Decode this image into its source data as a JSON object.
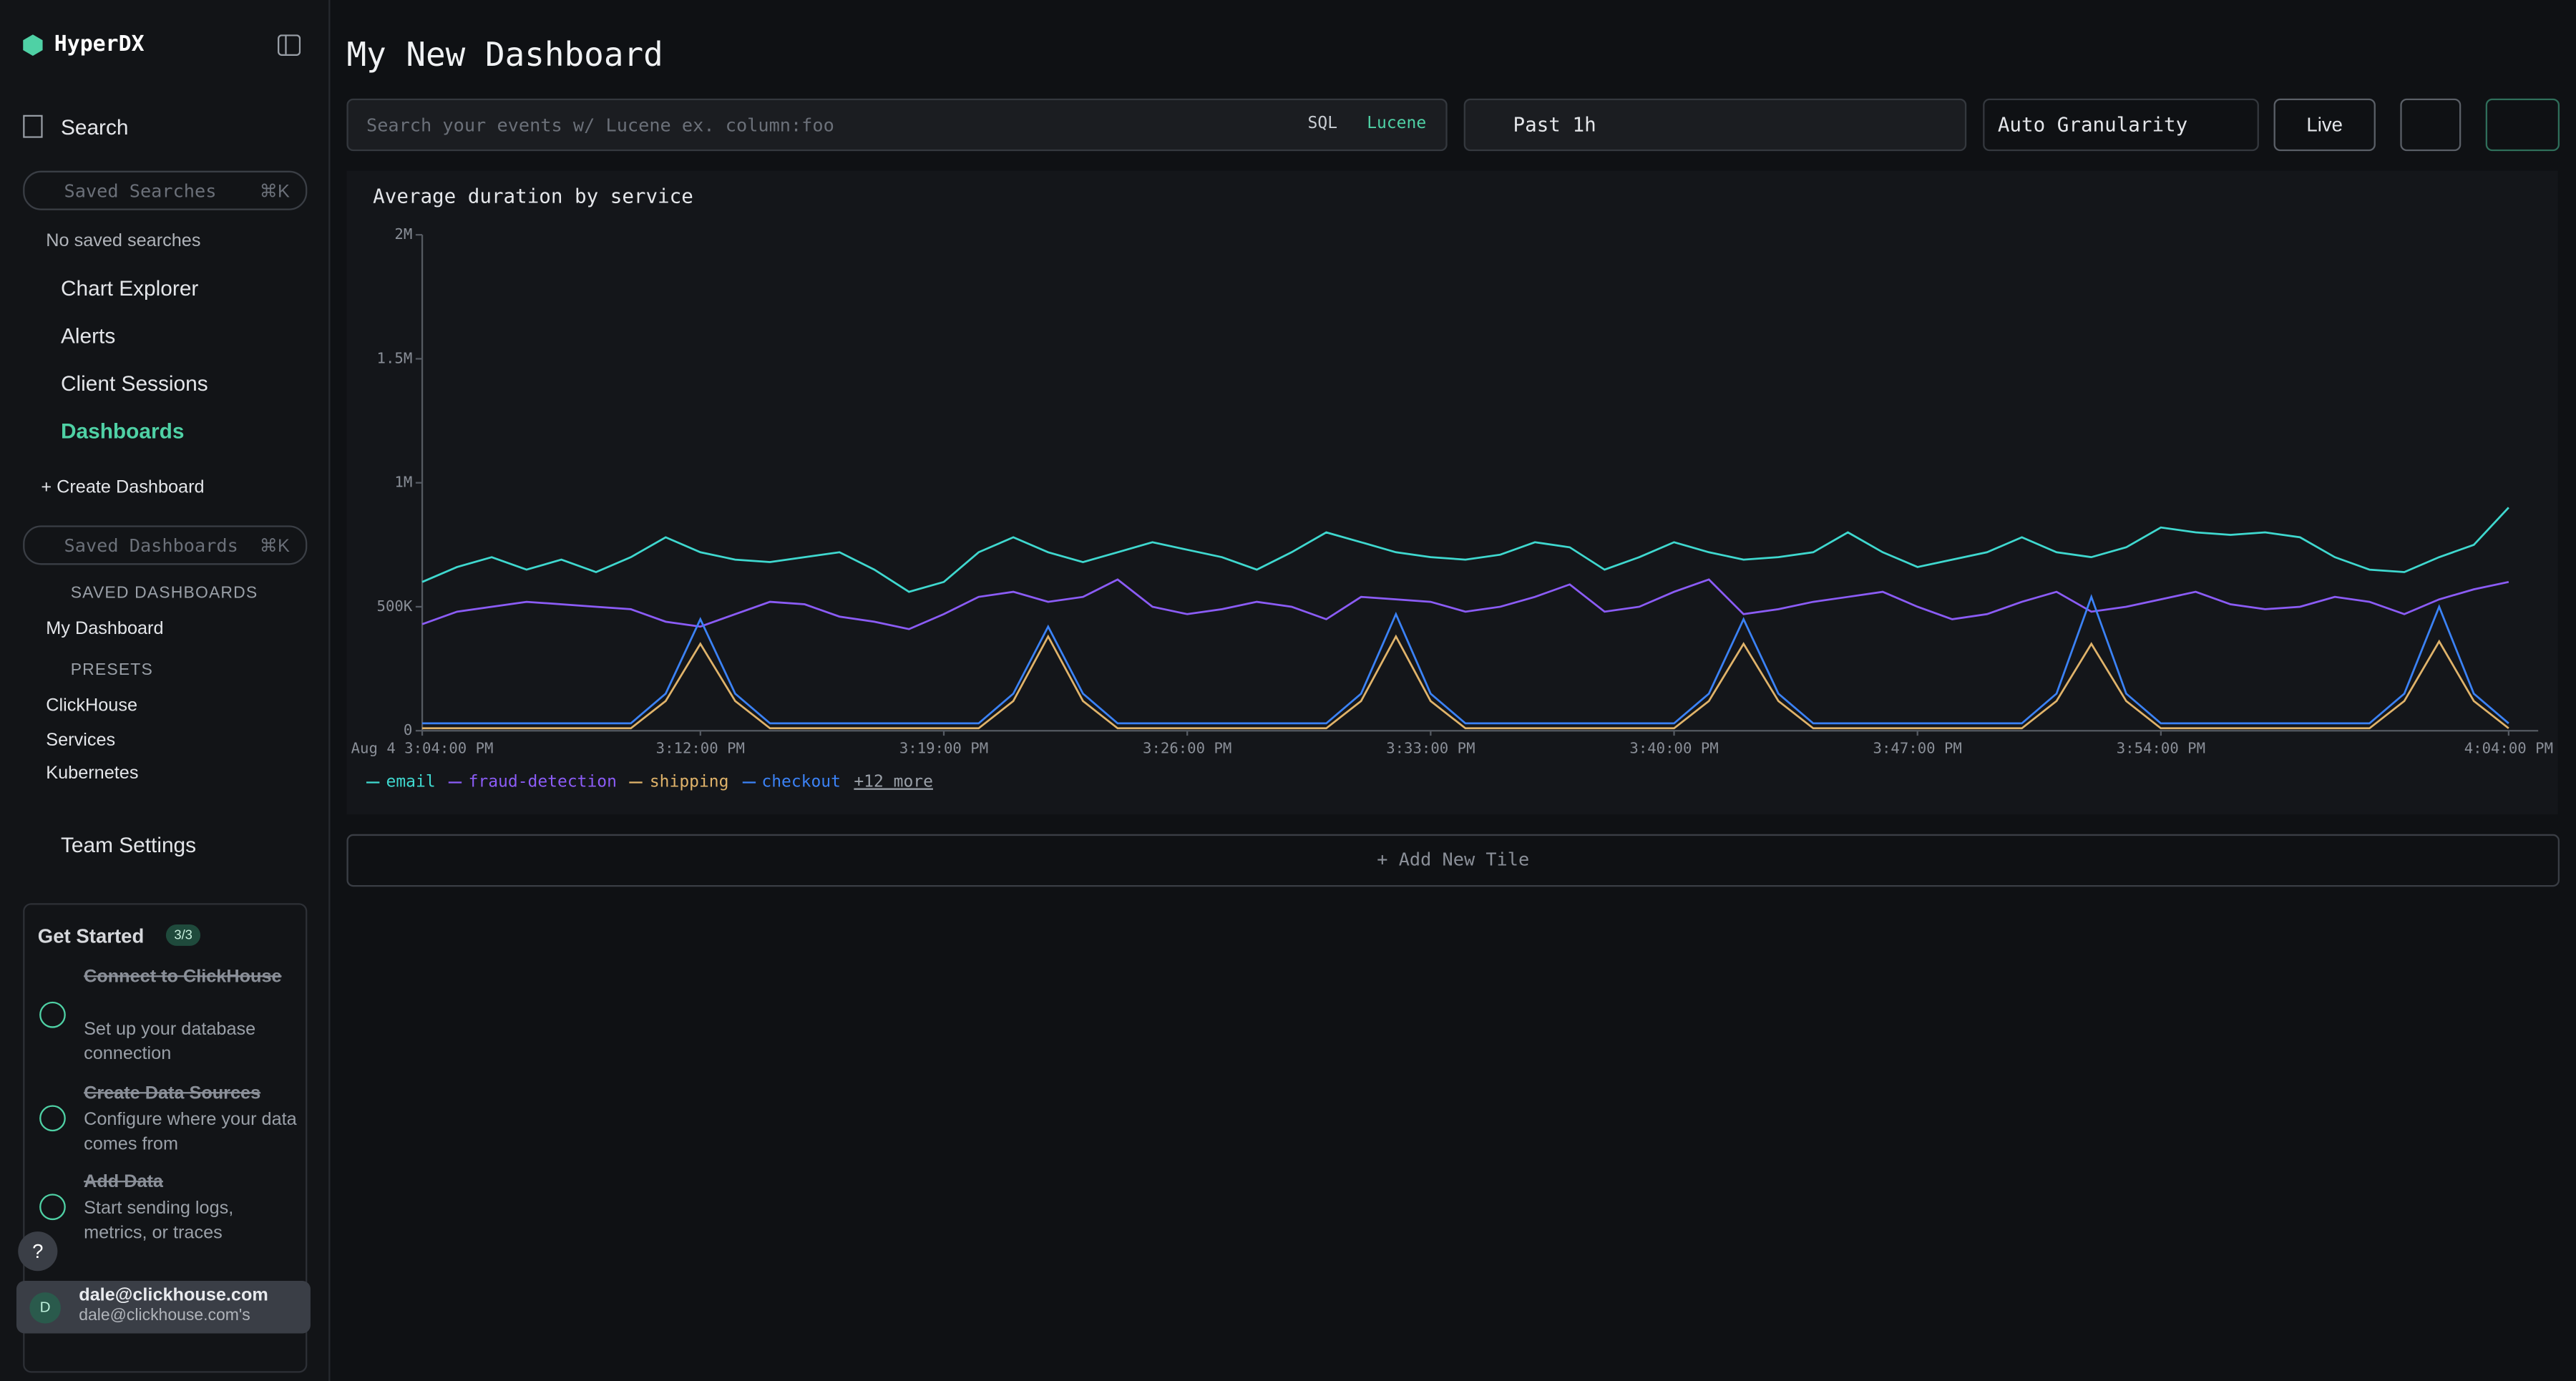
{
  "sidebar": {
    "brand": "HyperDX",
    "search": "Search",
    "saved_searches_placeholder": "Saved Searches",
    "saved_searches_shortcut": "⌘K",
    "no_saved_searches": "No saved searches",
    "chart_explorer": "Chart Explorer",
    "alerts": "Alerts",
    "client_sessions": "Client Sessions",
    "dashboards": "Dashboards",
    "create_dashboard": "+ Create Dashboard",
    "saved_dashboards_placeholder": "Saved Dashboards",
    "saved_dashboards_shortcut": "⌘K",
    "saved_dashboards_heading": "SAVED DASHBOARDS",
    "saved_dashboards": [
      "My Dashboard"
    ],
    "presets_heading": "PRESETS",
    "presets": [
      "ClickHouse",
      "Services",
      "Kubernetes"
    ],
    "team_settings": "Team Settings"
  },
  "get_started": {
    "title": "Get Started",
    "badge": "3/3",
    "steps": [
      {
        "title": "Connect to ClickHouse",
        "description": "Set up your database connection"
      },
      {
        "title": "Create Data Sources",
        "description": "Configure where your data comes from"
      },
      {
        "title": "Add Data",
        "description": "Start sending logs, metrics, or traces"
      }
    ]
  },
  "help": "?",
  "user": {
    "initial": "D",
    "email": "dale@clickhouse.com",
    "org": "dale@clickhouse.com's"
  },
  "header": {
    "title": "My New Dashboard",
    "search_placeholder": "Search your events w/ Lucene ex. column:foo",
    "sql": "SQL",
    "lucene": "Lucene",
    "time_range": "Past 1h",
    "granularity": "Auto Granularity",
    "live": "Live"
  },
  "add_tile": "+ Add New Tile",
  "chart_data": {
    "type": "line",
    "title": "Average duration by service",
    "x": [
      "3:04:00 PM",
      "3:05:00 PM",
      "3:06:00 PM",
      "3:07:00 PM",
      "3:08:00 PM",
      "3:09:00 PM",
      "3:10:00 PM",
      "3:11:00 PM",
      "3:12:00 PM",
      "3:13:00 PM",
      "3:14:00 PM",
      "3:15:00 PM",
      "3:16:00 PM",
      "3:17:00 PM",
      "3:18:00 PM",
      "3:19:00 PM",
      "3:20:00 PM",
      "3:21:00 PM",
      "3:22:00 PM",
      "3:23:00 PM",
      "3:24:00 PM",
      "3:25:00 PM",
      "3:26:00 PM",
      "3:27:00 PM",
      "3:28:00 PM",
      "3:29:00 PM",
      "3:30:00 PM",
      "3:31:00 PM",
      "3:32:00 PM",
      "3:33:00 PM",
      "3:34:00 PM",
      "3:35:00 PM",
      "3:36:00 PM",
      "3:37:00 PM",
      "3:38:00 PM",
      "3:39:00 PM",
      "3:40:00 PM",
      "3:41:00 PM",
      "3:42:00 PM",
      "3:43:00 PM",
      "3:44:00 PM",
      "3:45:00 PM",
      "3:46:00 PM",
      "3:47:00 PM",
      "3:48:00 PM",
      "3:49:00 PM",
      "3:50:00 PM",
      "3:51:00 PM",
      "3:52:00 PM",
      "3:53:00 PM",
      "3:54:00 PM",
      "3:55:00 PM",
      "3:56:00 PM",
      "3:57:00 PM",
      "3:58:00 PM",
      "3:59:00 PM",
      "4:00:00 PM",
      "4:01:00 PM",
      "4:02:00 PM",
      "4:03:00 PM",
      "4:04:00 PM"
    ],
    "series": [
      {
        "name": "email",
        "color": "#3fd8cf",
        "values": [
          600000,
          660000,
          700000,
          650000,
          690000,
          640000,
          700000,
          780000,
          720000,
          690000,
          680000,
          700000,
          720000,
          650000,
          560000,
          600000,
          720000,
          780000,
          720000,
          680000,
          720000,
          760000,
          730000,
          700000,
          650000,
          720000,
          800000,
          760000,
          720000,
          700000,
          690000,
          710000,
          760000,
          740000,
          650000,
          700000,
          760000,
          720000,
          690000,
          700000,
          720000,
          800000,
          720000,
          660000,
          690000,
          720000,
          780000,
          720000,
          700000,
          740000,
          820000,
          800000,
          790000,
          800000,
          780000,
          700000,
          650000,
          640000,
          700000,
          750000,
          900000
        ]
      },
      {
        "name": "fraud-detection",
        "color": "#8b5cf6",
        "values": [
          430000,
          480000,
          500000,
          520000,
          510000,
          500000,
          490000,
          440000,
          420000,
          470000,
          520000,
          510000,
          460000,
          440000,
          410000,
          470000,
          540000,
          560000,
          520000,
          540000,
          610000,
          500000,
          470000,
          490000,
          520000,
          500000,
          450000,
          540000,
          530000,
          520000,
          480000,
          500000,
          540000,
          590000,
          480000,
          500000,
          560000,
          610000,
          470000,
          490000,
          520000,
          540000,
          560000,
          500000,
          450000,
          470000,
          520000,
          560000,
          480000,
          500000,
          530000,
          560000,
          510000,
          490000,
          500000,
          540000,
          520000,
          470000,
          530000,
          570000,
          600000
        ]
      },
      {
        "name": "shipping",
        "color": "#e0b36a",
        "values": [
          10000,
          10000,
          10000,
          10000,
          10000,
          10000,
          10000,
          120000,
          350000,
          120000,
          10000,
          10000,
          10000,
          10000,
          10000,
          10000,
          10000,
          120000,
          380000,
          120000,
          10000,
          10000,
          10000,
          10000,
          10000,
          10000,
          10000,
          120000,
          380000,
          120000,
          10000,
          10000,
          10000,
          10000,
          10000,
          10000,
          10000,
          120000,
          350000,
          120000,
          10000,
          10000,
          10000,
          10000,
          10000,
          10000,
          10000,
          120000,
          350000,
          120000,
          10000,
          10000,
          10000,
          10000,
          10000,
          10000,
          10000,
          120000,
          360000,
          120000,
          10000
        ]
      },
      {
        "name": "checkout",
        "color": "#3b82f6",
        "values": [
          30000,
          30000,
          30000,
          30000,
          30000,
          30000,
          30000,
          150000,
          450000,
          150000,
          30000,
          30000,
          30000,
          30000,
          30000,
          30000,
          30000,
          150000,
          420000,
          150000,
          30000,
          30000,
          30000,
          30000,
          30000,
          30000,
          30000,
          150000,
          470000,
          150000,
          30000,
          30000,
          30000,
          30000,
          30000,
          30000,
          30000,
          150000,
          450000,
          150000,
          30000,
          30000,
          30000,
          30000,
          30000,
          30000,
          30000,
          150000,
          540000,
          150000,
          30000,
          30000,
          30000,
          30000,
          30000,
          30000,
          30000,
          150000,
          500000,
          150000,
          30000
        ]
      }
    ],
    "ylim": [
      0,
      2000000
    ],
    "yticks": [
      0,
      {
        "value": 500000,
        "label": "500K"
      },
      {
        "value": 1000000,
        "label": "1M"
      },
      {
        "value": 1500000,
        "label": "1.5M"
      },
      {
        "value": 2000000,
        "label": "2M"
      }
    ],
    "xticks": [
      {
        "value": "3:04:00 PM",
        "label": "Aug 4 3:04:00 PM"
      },
      "3:12:00 PM",
      "3:19:00 PM",
      "3:26:00 PM",
      "3:33:00 PM",
      "3:40:00 PM",
      "3:47:00 PM",
      "3:54:00 PM",
      "4:04:00 PM"
    ],
    "legend_more": "+12 more"
  }
}
